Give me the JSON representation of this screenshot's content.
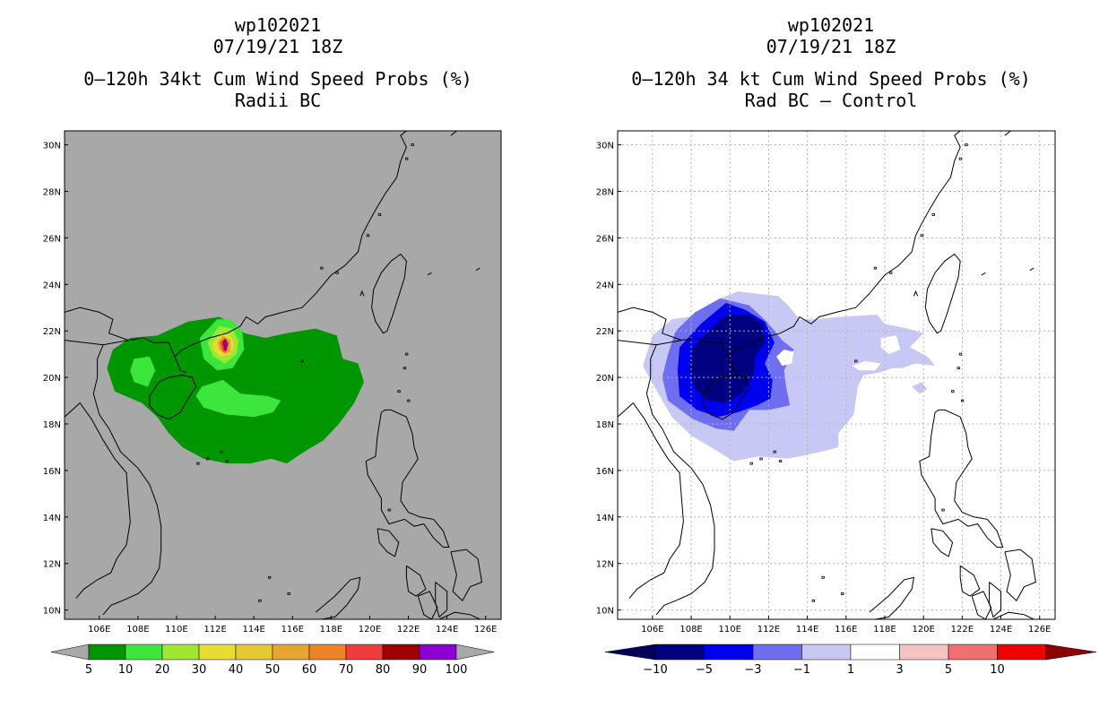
{
  "left_panel": {
    "storm_id": "wp102021",
    "datetime": "07/19/21 18Z",
    "title": "0–120h 34kt Cum Wind Speed Probs (%)",
    "subtitle": "Radii BC",
    "background": "#a8a8a8",
    "colorbar": {
      "labels": [
        "5",
        "10",
        "20",
        "30",
        "40",
        "50",
        "60",
        "70",
        "80",
        "90",
        "100"
      ],
      "colors": [
        "#009600",
        "#3ce63c",
        "#a0e632",
        "#e6dc32",
        "#e6c832",
        "#e6a532",
        "#f08228",
        "#f03c3c",
        "#a00000",
        "#8c00d2"
      ]
    }
  },
  "right_panel": {
    "storm_id": "wp102021",
    "datetime": "07/19/21 18Z",
    "title": "0–120h 34 kt Cum Wind Speed Probs (%)",
    "subtitle": "Rad BC – Control",
    "background": "#ffffff",
    "colorbar": {
      "labels": [
        "−10",
        "−5",
        "−3",
        "−1",
        "1",
        "3",
        "5",
        "10"
      ],
      "colors": [
        "#000080",
        "#0000f0",
        "#6e6ef0",
        "#c8c8f5",
        "#ffffff",
        "#f5c3c3",
        "#f06e6e",
        "#f00000"
      ],
      "end_left": "#00005a",
      "end_right": "#8c0000"
    }
  },
  "map": {
    "lon_labels": [
      "106E",
      "108E",
      "110E",
      "112E",
      "114E",
      "116E",
      "118E",
      "120E",
      "122E",
      "124E",
      "126E"
    ],
    "lat_labels": [
      "10N",
      "12N",
      "14N",
      "16N",
      "18N",
      "20N",
      "22N",
      "24N",
      "26N",
      "28N",
      "30N"
    ],
    "lon_min": 104.2,
    "lon_max": 126.8,
    "lat_min": 9.6,
    "lat_max": 30.6
  }
}
